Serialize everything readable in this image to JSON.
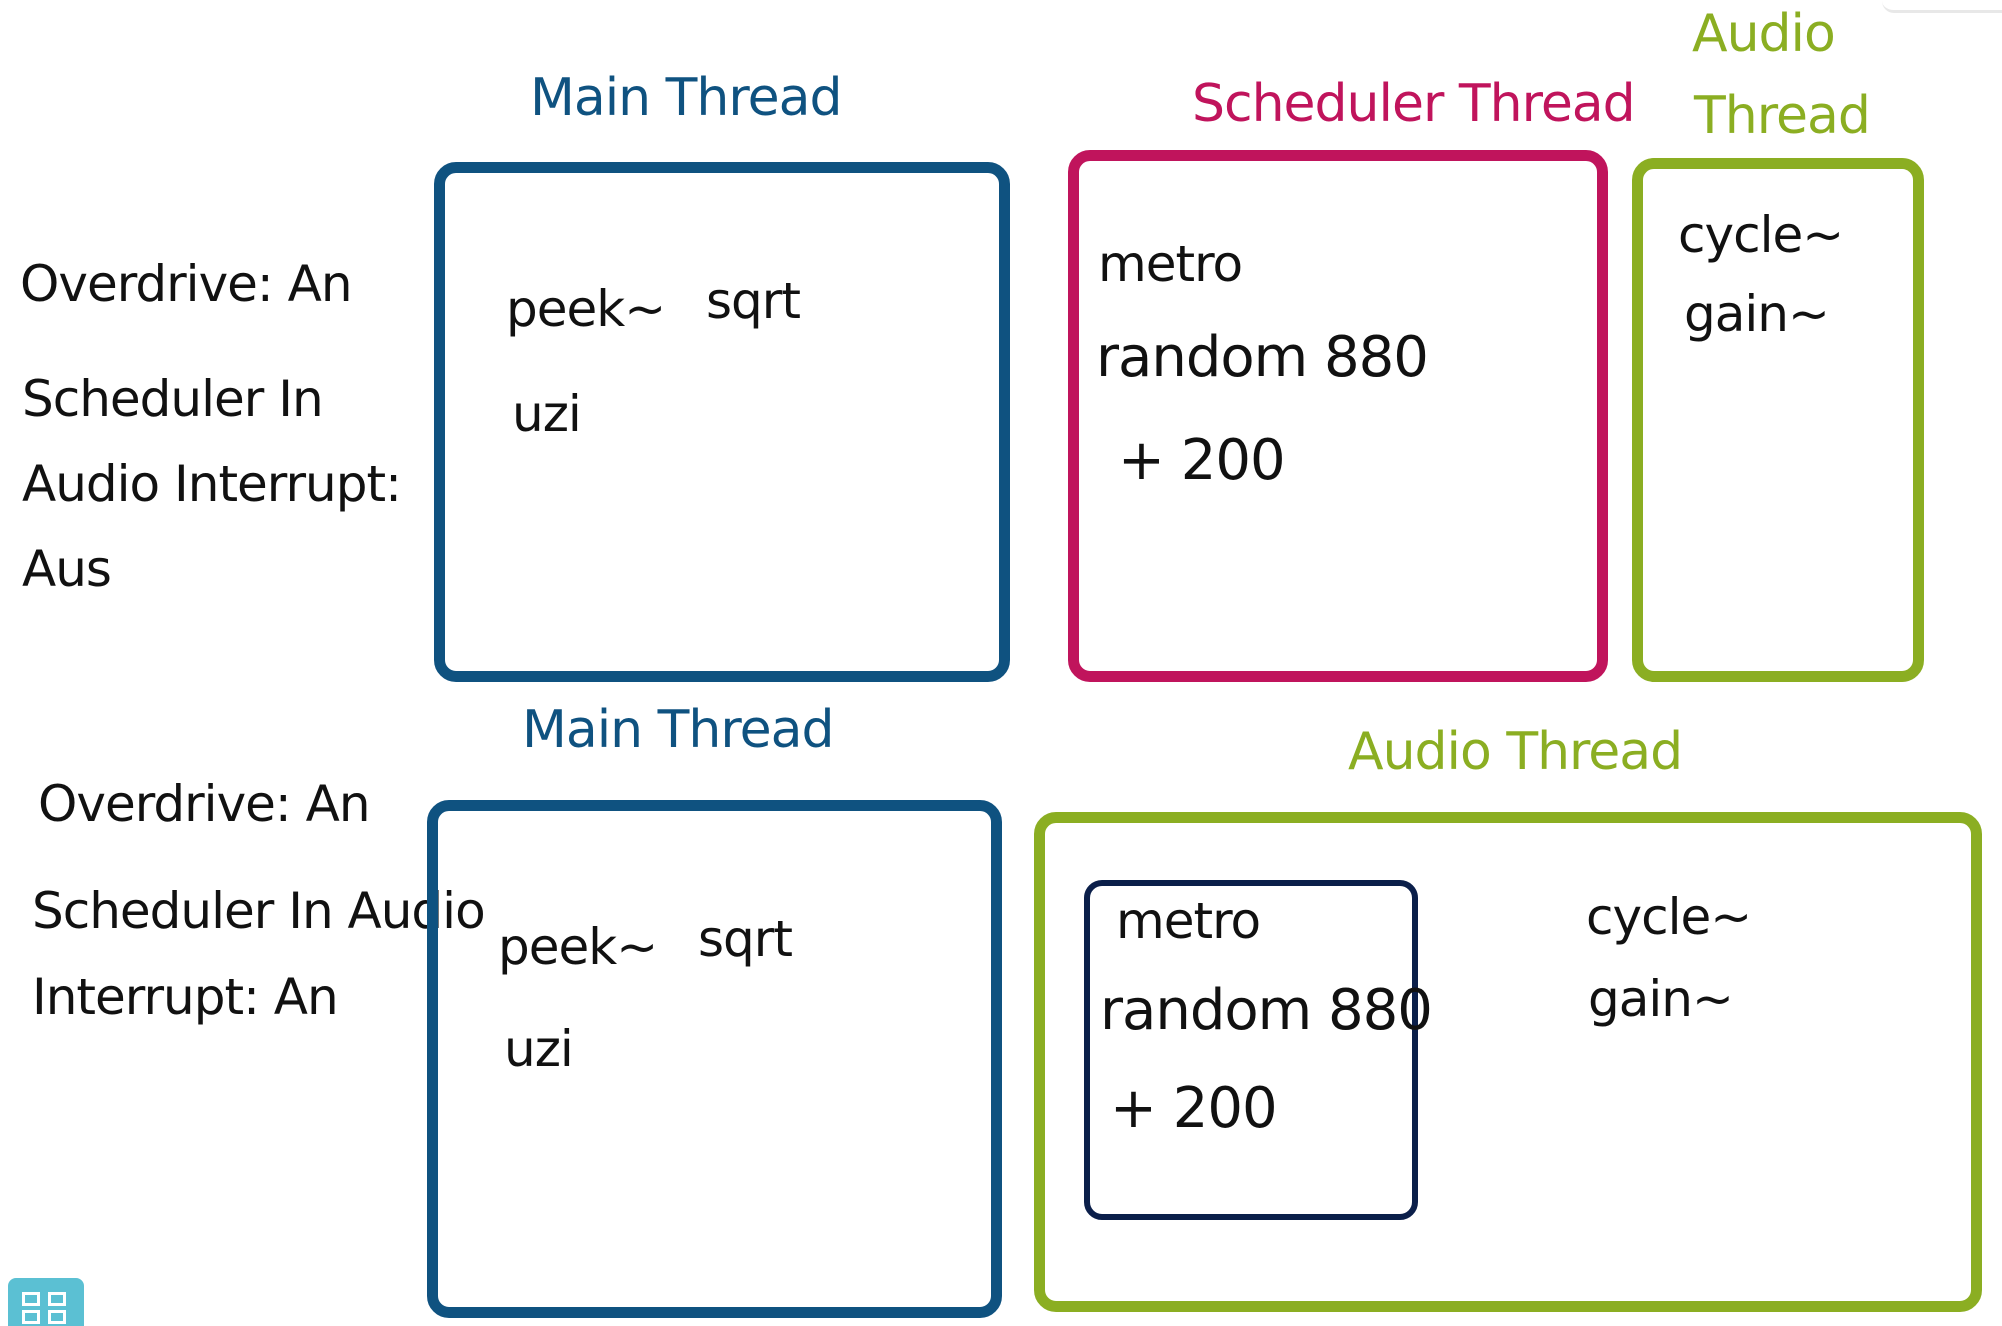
{
  "colors": {
    "main_thread": "#0f5280",
    "scheduler_thread": "#c0145c",
    "audio_thread": "#8bae22",
    "inner_box": "#0b1f4a",
    "text": "#111111",
    "nav_button": "#5bc0d3"
  },
  "top": {
    "side_labels": [
      "Overdrive: An",
      "Scheduler In",
      "Audio Interrupt:",
      "Aus"
    ],
    "main": {
      "title": "Main Thread",
      "items": [
        "peek~",
        "sqrt",
        "uzi"
      ]
    },
    "scheduler": {
      "title": "Scheduler Thread",
      "items": [
        "metro",
        "random 880",
        "+ 200"
      ]
    },
    "audio": {
      "title_line1": "Audio",
      "title_line2": "Thread",
      "items": [
        "cycle~",
        "gain~"
      ]
    }
  },
  "bottom": {
    "side_labels": [
      "Overdrive: An",
      "Scheduler In Audio",
      "Interrupt: An"
    ],
    "main": {
      "title": "Main Thread",
      "items": [
        "peek~",
        "sqrt",
        "uzi"
      ]
    },
    "audio": {
      "title": "Audio Thread",
      "scheduler_items": [
        "metro",
        "random 880",
        "+ 200"
      ],
      "items": [
        "cycle~",
        "gain~"
      ]
    }
  },
  "nav": {
    "icon": "grid-view-icon"
  }
}
